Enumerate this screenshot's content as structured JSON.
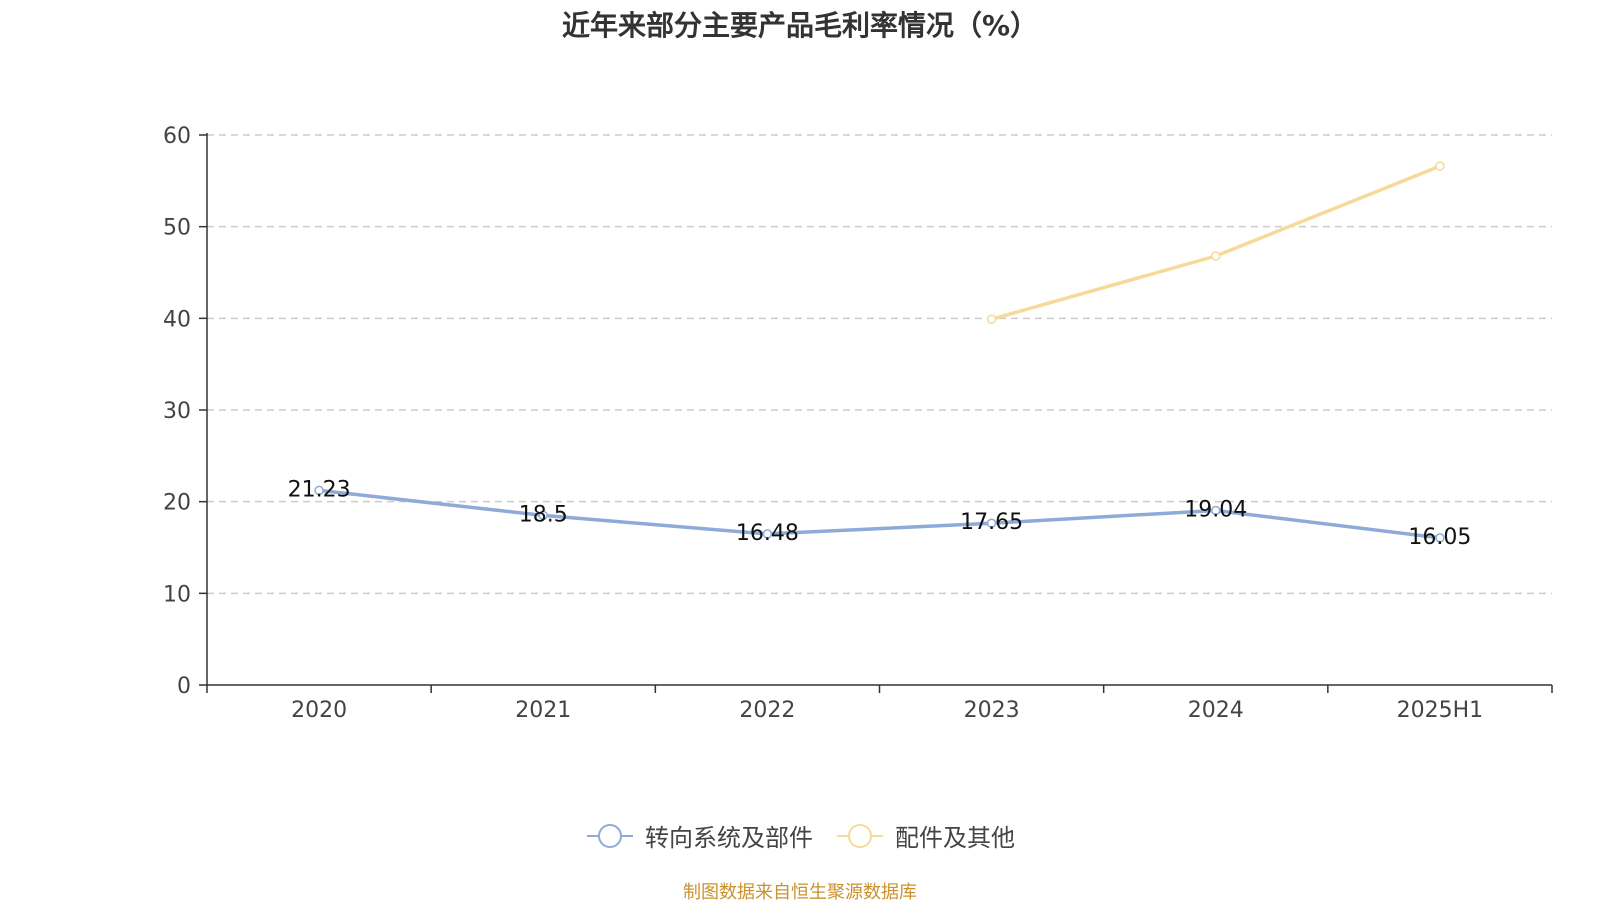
{
  "chart_data": {
    "type": "line",
    "title": "近年来部分主要产品毛利率情况（%）",
    "categories": [
      "2020",
      "2021",
      "2022",
      "2023",
      "2024",
      "2025H1"
    ],
    "ylim": [
      0,
      60
    ],
    "yticks": [
      0,
      10,
      20,
      30,
      40,
      50,
      60
    ],
    "grid": true,
    "legend_position": "bottom",
    "series": [
      {
        "name": "转向系统及部件",
        "color": "#8eaad8",
        "values": [
          21.23,
          18.5,
          16.48,
          17.65,
          19.04,
          16.05
        ],
        "labels": [
          "21.23",
          "18.5",
          "16.48",
          "17.65",
          "19.04",
          "16.05"
        ]
      },
      {
        "name": "配件及其他",
        "color": "#f7d99a",
        "values": [
          null,
          null,
          null,
          39.9,
          46.8,
          56.6
        ],
        "labels": null
      }
    ]
  },
  "source_note": "制图数据来自恒生聚源数据库"
}
